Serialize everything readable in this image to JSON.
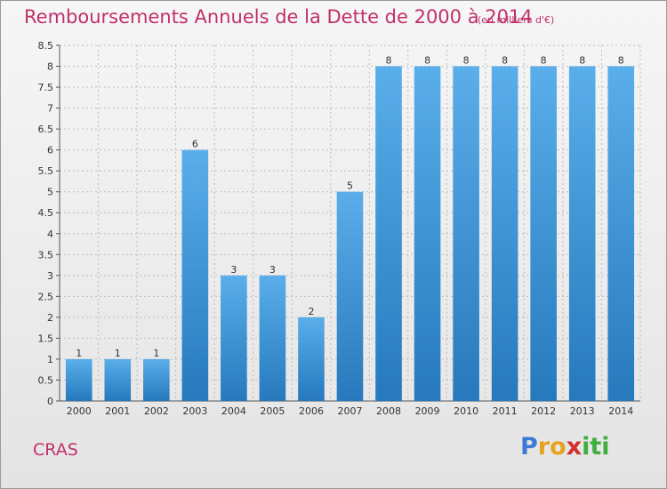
{
  "header": {
    "title": "Remboursements Annuels de la Dette de 2000 à 2014",
    "subtitle": "(en milliers d'€)"
  },
  "footer": {
    "commune": "CRAS",
    "logo": [
      "P",
      "r",
      "o",
      "x",
      "i",
      "t",
      "i"
    ],
    "logo_colors": [
      "#3d7ad6",
      "#e6a31e",
      "#e6a31e",
      "#d42e2e",
      "#3fae3f",
      "#3fae3f",
      "#3fae3f"
    ]
  },
  "colors": {
    "accent": "#c0306a",
    "bar_top": "#5aaeea",
    "bar_bottom": "#2679bc",
    "grid": "#bdbdbd",
    "axis_text": "#333333"
  },
  "chart_data": {
    "type": "bar",
    "title": "Remboursements Annuels de la Dette de 2000 à 2014",
    "subtitle": "(en milliers d'€)",
    "categories": [
      "2000",
      "2001",
      "2002",
      "2003",
      "2004",
      "2005",
      "2006",
      "2007",
      "2008",
      "2009",
      "2010",
      "2011",
      "2012",
      "2013",
      "2014"
    ],
    "values": [
      1,
      1,
      1,
      6,
      3,
      3,
      2,
      5,
      8,
      8,
      8,
      8,
      8,
      8,
      8
    ],
    "data_labels": [
      "1",
      "1",
      "1",
      "6",
      "3",
      "3",
      "2",
      "5",
      "8",
      "8",
      "8",
      "8",
      "8",
      "8",
      "8"
    ],
    "ylim": [
      0,
      8.5
    ],
    "yticks": [
      0,
      0.5,
      1,
      1.5,
      2,
      2.5,
      3,
      3.5,
      4,
      4.5,
      5,
      5.5,
      6,
      6.5,
      7,
      7.5,
      8,
      8.5
    ],
    "ytick_labels": [
      "0",
      "0.5",
      "1",
      "1.5",
      "2",
      "2.5",
      "3",
      "3.5",
      "4",
      "4.5",
      "5",
      "5.5",
      "6",
      "6.5",
      "7",
      "7.5",
      "8",
      "8.5"
    ],
    "grid": true,
    "legend": false
  }
}
